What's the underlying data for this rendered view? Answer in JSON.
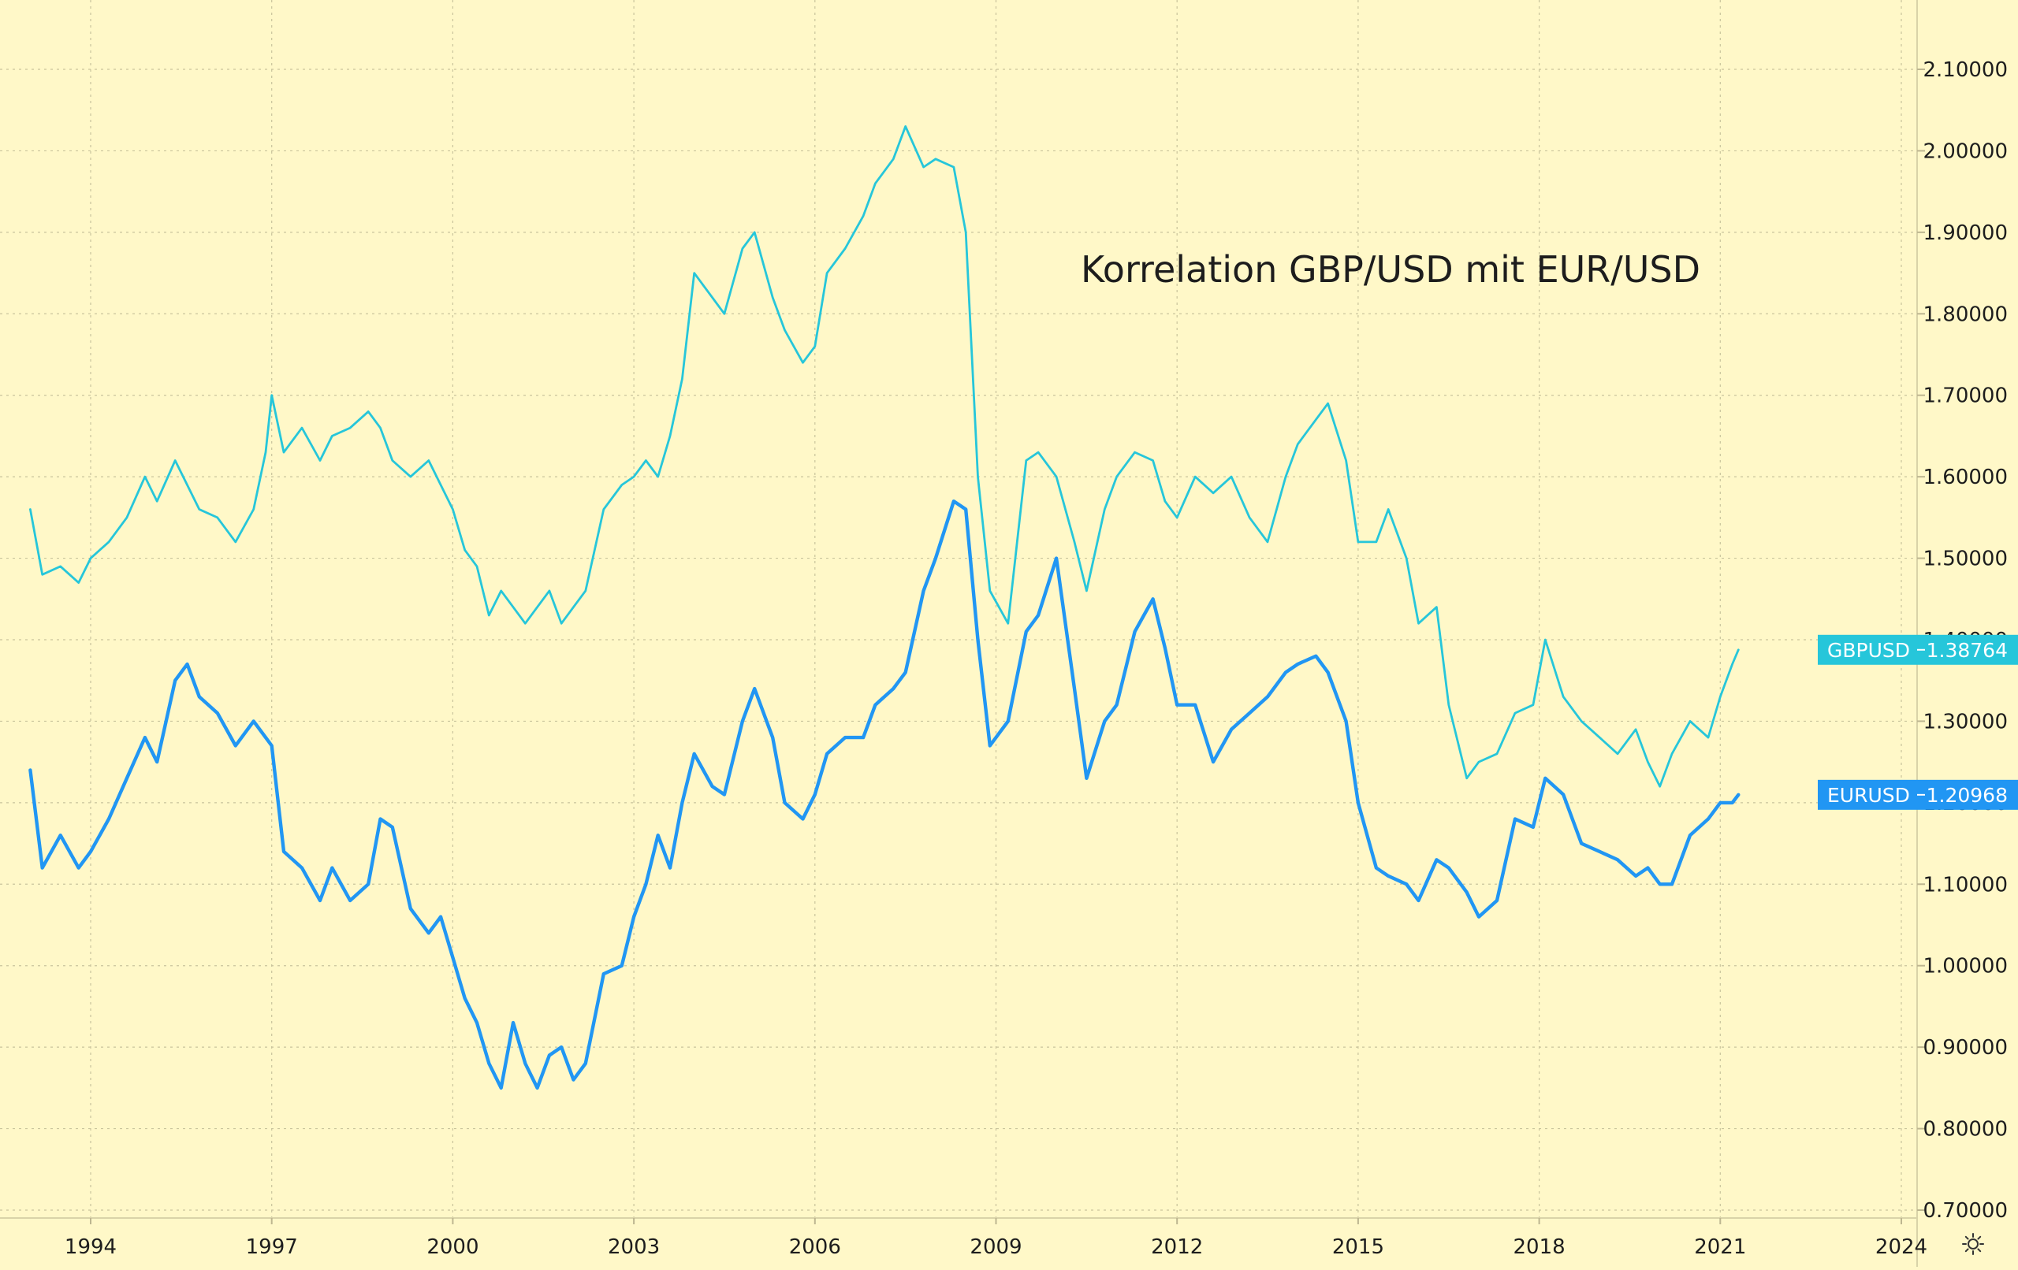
{
  "chart_data": {
    "type": "line",
    "title": "Korrelation GBP/USD mit EUR/USD",
    "ylim": [
      0.68,
      2.17
    ],
    "xlim": [
      1992.2,
      2024.7
    ],
    "y_ticks": [
      "0.70000",
      "0.80000",
      "0.90000",
      "1.00000",
      "1.10000",
      "1.20000",
      "1.30000",
      "1.40000",
      "1.50000",
      "1.60000",
      "1.70000",
      "1.80000",
      "1.90000",
      "2.00000",
      "2.10000"
    ],
    "x_ticks": [
      "1994",
      "1997",
      "2000",
      "2003",
      "2006",
      "2009",
      "2012",
      "2015",
      "2018",
      "2021",
      "2024"
    ],
    "grid": true,
    "series": [
      {
        "name": "GBPUSD",
        "color": "#26c6da",
        "last_value": "1.38764",
        "x": [
          1993.0,
          1993.2,
          1993.5,
          1993.8,
          1994.0,
          1994.3,
          1994.6,
          1994.9,
          1995.1,
          1995.4,
          1995.6,
          1995.8,
          1996.1,
          1996.4,
          1996.7,
          1996.9,
          1997.0,
          1997.2,
          1997.5,
          1997.8,
          1998.0,
          1998.3,
          1998.6,
          1998.8,
          1999.0,
          1999.3,
          1999.6,
          1999.8,
          2000.0,
          2000.2,
          2000.4,
          2000.6,
          2000.8,
          2001.0,
          2001.2,
          2001.4,
          2001.6,
          2001.8,
          2002.0,
          2002.2,
          2002.5,
          2002.8,
          2003.0,
          2003.2,
          2003.4,
          2003.6,
          2003.8,
          2004.0,
          2004.3,
          2004.5,
          2004.8,
          2005.0,
          2005.3,
          2005.5,
          2005.8,
          2006.0,
          2006.2,
          2006.5,
          2006.8,
          2007.0,
          2007.3,
          2007.5,
          2007.8,
          2008.0,
          2008.3,
          2008.5,
          2008.7,
          2008.9,
          2009.2,
          2009.5,
          2009.7,
          2010.0,
          2010.3,
          2010.5,
          2010.8,
          2011.0,
          2011.3,
          2011.6,
          2011.8,
          2012.0,
          2012.3,
          2012.6,
          2012.9,
          2013.2,
          2013.5,
          2013.8,
          2014.0,
          2014.3,
          2014.5,
          2014.8,
          2015.0,
          2015.3,
          2015.5,
          2015.8,
          2016.0,
          2016.3,
          2016.5,
          2016.8,
          2017.0,
          2017.3,
          2017.6,
          2017.9,
          2018.1,
          2018.4,
          2018.7,
          2019.0,
          2019.3,
          2019.6,
          2019.8,
          2020.0,
          2020.2,
          2020.5,
          2020.8,
          2021.0,
          2021.2,
          2021.3
        ],
        "y": [
          1.56,
          1.48,
          1.49,
          1.47,
          1.5,
          1.52,
          1.55,
          1.6,
          1.57,
          1.62,
          1.59,
          1.56,
          1.55,
          1.52,
          1.56,
          1.63,
          1.7,
          1.63,
          1.66,
          1.62,
          1.65,
          1.66,
          1.68,
          1.66,
          1.62,
          1.6,
          1.62,
          1.59,
          1.56,
          1.51,
          1.49,
          1.43,
          1.46,
          1.44,
          1.42,
          1.44,
          1.46,
          1.42,
          1.44,
          1.46,
          1.56,
          1.59,
          1.6,
          1.62,
          1.6,
          1.65,
          1.72,
          1.85,
          1.82,
          1.8,
          1.88,
          1.9,
          1.82,
          1.78,
          1.74,
          1.76,
          1.85,
          1.88,
          1.92,
          1.96,
          1.99,
          2.03,
          1.98,
          1.99,
          1.98,
          1.9,
          1.6,
          1.46,
          1.42,
          1.62,
          1.63,
          1.6,
          1.52,
          1.46,
          1.56,
          1.6,
          1.63,
          1.62,
          1.57,
          1.55,
          1.6,
          1.58,
          1.6,
          1.55,
          1.52,
          1.6,
          1.64,
          1.67,
          1.69,
          1.62,
          1.52,
          1.52,
          1.56,
          1.5,
          1.42,
          1.44,
          1.32,
          1.23,
          1.25,
          1.26,
          1.31,
          1.32,
          1.4,
          1.33,
          1.3,
          1.28,
          1.26,
          1.29,
          1.25,
          1.22,
          1.26,
          1.3,
          1.28,
          1.33,
          1.37,
          1.38764
        ]
      },
      {
        "name": "EURUSD",
        "color": "#2196f3",
        "last_value": "1.20968",
        "x": [
          1993.0,
          1993.2,
          1993.5,
          1993.8,
          1994.0,
          1994.3,
          1994.6,
          1994.9,
          1995.1,
          1995.4,
          1995.6,
          1995.8,
          1996.1,
          1996.4,
          1996.7,
          1996.9,
          1997.0,
          1997.2,
          1997.5,
          1997.8,
          1998.0,
          1998.3,
          1998.6,
          1998.8,
          1999.0,
          1999.3,
          1999.6,
          1999.8,
          2000.0,
          2000.2,
          2000.4,
          2000.6,
          2000.8,
          2001.0,
          2001.2,
          2001.4,
          2001.6,
          2001.8,
          2002.0,
          2002.2,
          2002.5,
          2002.8,
          2003.0,
          2003.2,
          2003.4,
          2003.6,
          2003.8,
          2004.0,
          2004.3,
          2004.5,
          2004.8,
          2005.0,
          2005.3,
          2005.5,
          2005.8,
          2006.0,
          2006.2,
          2006.5,
          2006.8,
          2007.0,
          2007.3,
          2007.5,
          2007.8,
          2008.0,
          2008.3,
          2008.5,
          2008.7,
          2008.9,
          2009.2,
          2009.5,
          2009.7,
          2010.0,
          2010.3,
          2010.5,
          2010.8,
          2011.0,
          2011.3,
          2011.6,
          2011.8,
          2012.0,
          2012.3,
          2012.6,
          2012.9,
          2013.2,
          2013.5,
          2013.8,
          2014.0,
          2014.3,
          2014.5,
          2014.8,
          2015.0,
          2015.3,
          2015.5,
          2015.8,
          2016.0,
          2016.3,
          2016.5,
          2016.8,
          2017.0,
          2017.3,
          2017.6,
          2017.9,
          2018.1,
          2018.4,
          2018.7,
          2019.0,
          2019.3,
          2019.6,
          2019.8,
          2020.0,
          2020.2,
          2020.5,
          2020.8,
          2021.0,
          2021.2,
          2021.3
        ],
        "y": [
          1.24,
          1.12,
          1.16,
          1.12,
          1.14,
          1.18,
          1.23,
          1.28,
          1.25,
          1.35,
          1.37,
          1.33,
          1.31,
          1.27,
          1.3,
          1.28,
          1.27,
          1.14,
          1.12,
          1.08,
          1.12,
          1.08,
          1.1,
          1.18,
          1.17,
          1.07,
          1.04,
          1.06,
          1.01,
          0.96,
          0.93,
          0.88,
          0.85,
          0.93,
          0.88,
          0.85,
          0.89,
          0.9,
          0.86,
          0.88,
          0.99,
          1.0,
          1.06,
          1.1,
          1.16,
          1.12,
          1.2,
          1.26,
          1.22,
          1.21,
          1.3,
          1.34,
          1.28,
          1.2,
          1.18,
          1.21,
          1.26,
          1.28,
          1.28,
          1.32,
          1.34,
          1.36,
          1.46,
          1.5,
          1.57,
          1.56,
          1.4,
          1.27,
          1.3,
          1.41,
          1.43,
          1.5,
          1.34,
          1.23,
          1.3,
          1.32,
          1.41,
          1.45,
          1.39,
          1.32,
          1.32,
          1.25,
          1.29,
          1.31,
          1.33,
          1.36,
          1.37,
          1.38,
          1.36,
          1.3,
          1.2,
          1.12,
          1.11,
          1.1,
          1.08,
          1.13,
          1.12,
          1.09,
          1.06,
          1.08,
          1.18,
          1.17,
          1.23,
          1.21,
          1.15,
          1.14,
          1.13,
          1.11,
          1.12,
          1.1,
          1.1,
          1.16,
          1.18,
          1.2,
          1.2,
          1.20968
        ]
      }
    ]
  }
}
